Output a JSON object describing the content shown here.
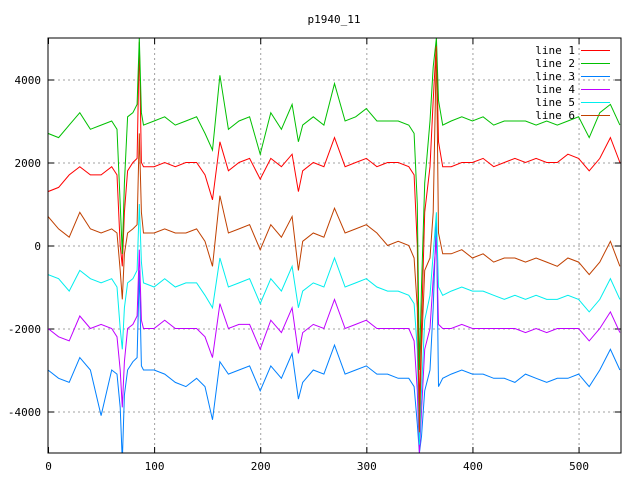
{
  "chart_data": {
    "type": "line",
    "title": "p1940_11",
    "xlabel": "",
    "ylabel": "",
    "xlim": [
      0,
      540
    ],
    "ylim": [
      -5000,
      5000
    ],
    "xticks": [
      0,
      100,
      200,
      300,
      400,
      500
    ],
    "yticks": [
      -4000,
      -2000,
      0,
      2000,
      4000
    ],
    "grid": true,
    "legend_position": "top-right",
    "x": [
      0,
      10,
      20,
      30,
      40,
      50,
      60,
      65,
      68,
      70,
      72,
      75,
      80,
      84,
      86,
      88,
      90,
      100,
      110,
      120,
      130,
      140,
      148,
      155,
      162,
      170,
      180,
      190,
      200,
      210,
      220,
      230,
      236,
      240,
      250,
      260,
      270,
      280,
      290,
      300,
      310,
      320,
      330,
      340,
      345,
      348,
      350,
      352,
      355,
      360,
      363,
      366,
      368,
      372,
      380,
      390,
      400,
      410,
      420,
      430,
      440,
      450,
      460,
      470,
      480,
      490,
      500,
      510,
      520,
      530,
      539
    ],
    "series": [
      {
        "name": "line 1",
        "color": "#ff0000",
        "values": [
          1300,
          1400,
          1700,
          1900,
          1700,
          1700,
          1900,
          1700,
          0,
          -500,
          800,
          1800,
          2000,
          2100,
          4900,
          2000,
          1900,
          1900,
          2000,
          1900,
          2000,
          2000,
          1700,
          1100,
          2500,
          1800,
          2000,
          2100,
          1600,
          2100,
          1900,
          2200,
          1300,
          1800,
          2000,
          1900,
          2600,
          1900,
          2000,
          2100,
          1900,
          2000,
          2000,
          1900,
          1700,
          0,
          -4000,
          -2000,
          800,
          1900,
          3500,
          4900,
          2500,
          1900,
          1900,
          2000,
          2000,
          2100,
          1900,
          2000,
          2100,
          2000,
          2100,
          2000,
          2000,
          2200,
          2100,
          1800,
          2100,
          2600,
          2000
        ]
      },
      {
        "name": "line 2",
        "color": "#00c000",
        "values": [
          2700,
          2600,
          2900,
          3200,
          2800,
          2900,
          3000,
          2800,
          1000,
          -200,
          1500,
          3100,
          3200,
          3400,
          5000,
          3200,
          2900,
          3000,
          3100,
          2900,
          3000,
          3100,
          2700,
          2300,
          4100,
          2800,
          3000,
          3100,
          2200,
          3200,
          2800,
          3400,
          2500,
          2900,
          3100,
          2900,
          3900,
          3000,
          3100,
          3300,
          3000,
          3000,
          3000,
          2900,
          2700,
          1000,
          -3000,
          -1000,
          1500,
          3000,
          4300,
          5000,
          3500,
          2900,
          3000,
          3100,
          3000,
          3100,
          2900,
          3000,
          3000,
          3000,
          2900,
          3000,
          2900,
          3000,
          3100,
          2600,
          3200,
          3400,
          2900
        ]
      },
      {
        "name": "line 3",
        "color": "#0080ff",
        "values": [
          -3000,
          -3200,
          -3300,
          -2700,
          -3000,
          -4100,
          -3000,
          -3100,
          -3900,
          -5200,
          -3600,
          -3000,
          -2800,
          -2700,
          -600,
          -2900,
          -3000,
          -3000,
          -3100,
          -3300,
          -3400,
          -3200,
          -3400,
          -4200,
          -2800,
          -3100,
          -3000,
          -2900,
          -3500,
          -2900,
          -3200,
          -2600,
          -3700,
          -3300,
          -3000,
          -3100,
          -2400,
          -3100,
          -3000,
          -2900,
          -3100,
          -3100,
          -3200,
          -3200,
          -3400,
          -4300,
          -5000,
          -4600,
          -3500,
          -3000,
          -1500,
          700,
          -3400,
          -3200,
          -3100,
          -3000,
          -3100,
          -3100,
          -3200,
          -3200,
          -3300,
          -3100,
          -3200,
          -3300,
          -3200,
          -3200,
          -3100,
          -3400,
          -3000,
          -2500,
          -3000
        ]
      },
      {
        "name": "line 4",
        "color": "#c000ff",
        "values": [
          -2000,
          -2200,
          -2300,
          -1700,
          -2000,
          -1900,
          -2000,
          -2200,
          -3000,
          -3900,
          -2800,
          -2000,
          -1900,
          -1700,
          -100,
          -1800,
          -2000,
          -2000,
          -1800,
          -2000,
          -2000,
          -2000,
          -2200,
          -2700,
          -1400,
          -2000,
          -1900,
          -1900,
          -2500,
          -1800,
          -2100,
          -1500,
          -2600,
          -2100,
          -1900,
          -2000,
          -1300,
          -2000,
          -1900,
          -1800,
          -2000,
          -2000,
          -2000,
          -2000,
          -2300,
          -3500,
          -5000,
          -4000,
          -2500,
          -2000,
          -800,
          200,
          -1900,
          -2000,
          -2000,
          -1900,
          -2000,
          -2000,
          -2000,
          -2000,
          -2000,
          -2100,
          -2000,
          -2100,
          -2000,
          -2000,
          -2000,
          -2300,
          -2000,
          -1600,
          -2100
        ]
      },
      {
        "name": "line 5",
        "color": "#00eeee",
        "values": [
          -700,
          -800,
          -1100,
          -600,
          -800,
          -900,
          -800,
          -1000,
          -2000,
          -2500,
          -1500,
          -900,
          -800,
          -600,
          1000,
          -400,
          -900,
          -1000,
          -800,
          -1000,
          -900,
          -900,
          -1200,
          -1500,
          -300,
          -1000,
          -900,
          -800,
          -1400,
          -800,
          -1100,
          -500,
          -1500,
          -1100,
          -900,
          -1000,
          -300,
          -1000,
          -900,
          -800,
          -1000,
          -1100,
          -1100,
          -1200,
          -1400,
          -2500,
          -4800,
          -3500,
          -1800,
          -1200,
          -200,
          800,
          -1000,
          -1200,
          -1100,
          -1000,
          -1100,
          -1100,
          -1200,
          -1300,
          -1200,
          -1300,
          -1200,
          -1300,
          -1300,
          -1200,
          -1300,
          -1600,
          -1300,
          -800,
          -1300
        ]
      },
      {
        "name": "line 6",
        "color": "#c04000",
        "values": [
          700,
          400,
          200,
          800,
          400,
          300,
          400,
          300,
          -600,
          -1300,
          -200,
          300,
          400,
          500,
          2700,
          800,
          300,
          300,
          400,
          300,
          300,
          400,
          100,
          -500,
          1200,
          300,
          400,
          500,
          -100,
          500,
          200,
          700,
          -600,
          100,
          300,
          200,
          900,
          300,
          400,
          500,
          300,
          0,
          100,
          0,
          -300,
          -1500,
          -4500,
          -2500,
          -600,
          -300,
          800,
          4800,
          300,
          -200,
          -200,
          -100,
          -300,
          -200,
          -400,
          -300,
          -300,
          -400,
          -300,
          -400,
          -500,
          -300,
          -400,
          -700,
          -400,
          100,
          -500
        ]
      }
    ]
  }
}
